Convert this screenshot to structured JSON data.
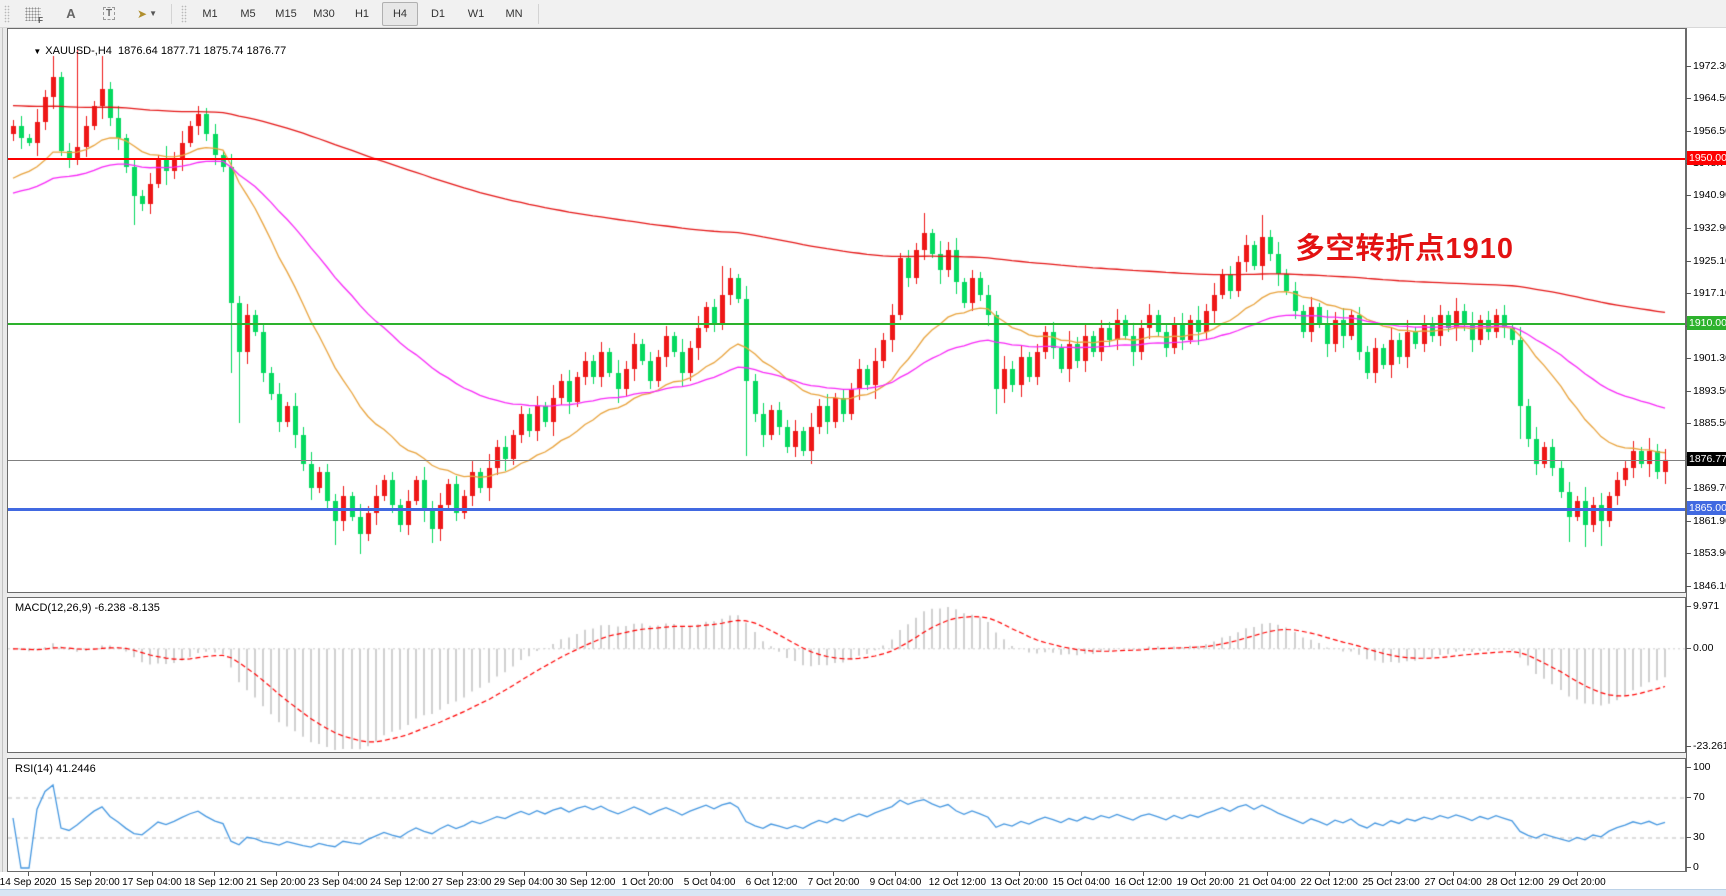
{
  "toolbar": {
    "tools": [
      {
        "name": "fibonacci-tool",
        "glyph": "F"
      },
      {
        "name": "text-label-tool",
        "glyph": "A"
      },
      {
        "name": "text-box-tool",
        "glyph": "T"
      },
      {
        "name": "arrows-tool",
        "glyph": "➤"
      }
    ],
    "timeframes": [
      "M1",
      "M5",
      "M15",
      "M30",
      "H1",
      "H4",
      "D1",
      "W1",
      "MN"
    ],
    "active_timeframe": "H4"
  },
  "title": {
    "dropdown_glyph": "▼",
    "symbol": "XAUUSD-,H4",
    "ohlc_values": "1876.64 1877.71 1875.74 1876.77"
  },
  "chart_data": {
    "type": "candlestick",
    "symbol": "XAUUSD",
    "timeframe": "H4",
    "title": "XAUUSD-,H4  1876.64 1877.71 1875.74 1876.77",
    "annotation": {
      "text": "多空转折点1910",
      "color": "#e31212"
    },
    "colors": {
      "up": "#ee1717",
      "down": "#05d95f",
      "macd_hist": "#c2c2c2",
      "macd_signal": "#ff0000",
      "rsi_line": "#4597e0"
    },
    "price_axis_ticks": [
      "1972.30",
      "1964.50",
      "1956.50",
      "1948.70",
      "1940.90",
      "1932.90",
      "1925.10",
      "1917.10",
      "1909.30",
      "1901.30",
      "1893.50",
      "1885.50",
      "1877.70",
      "1869.70",
      "1861.90",
      "1853.90",
      "1846.10"
    ],
    "horizontal_levels": [
      {
        "name": "resistance-1950",
        "label": "1950.00",
        "value": 1950.0,
        "color": "#fd0000",
        "thickness": 2
      },
      {
        "name": "pivot-1910",
        "label": "1910.00",
        "value": 1910.0,
        "color": "#2db22d",
        "thickness": 2
      },
      {
        "name": "current-price",
        "label": "1876.77",
        "value": 1876.77,
        "color": "#808080",
        "label_bg": "#000000",
        "thickness": 1
      },
      {
        "name": "support-1865",
        "label": "1865.00",
        "value": 1865.0,
        "color": "#4169e1",
        "thickness": 3
      }
    ],
    "time_axis_labels": [
      "14 Sep 2020",
      "15 Sep 20:00",
      "17 Sep 04:00",
      "18 Sep 12:00",
      "21 Sep 20:00",
      "23 Sep 04:00",
      "24 Sep 12:00",
      "27 Sep 23:00",
      "29 Sep 04:00",
      "30 Sep 12:00",
      "1 Oct 20:00",
      "5 Oct 04:00",
      "6 Oct 12:00",
      "7 Oct 20:00",
      "9 Oct 04:00",
      "12 Oct 12:00",
      "13 Oct 20:00",
      "15 Oct 04:00",
      "16 Oct 12:00",
      "19 Oct 20:00",
      "21 Oct 04:00",
      "22 Oct 12:00",
      "25 Oct 23:00",
      "27 Oct 04:00",
      "28 Oct 12:00",
      "29 Oct 20:00"
    ],
    "first_open": 1956,
    "candles_closes": [
      1958,
      1955,
      1954,
      1959,
      1965,
      1970,
      1952,
      1950,
      1953,
      1958,
      1963,
      1967,
      1960,
      1955,
      1948,
      1941,
      1939,
      1944,
      1950,
      1947,
      1950,
      1954,
      1958,
      1961,
      1956,
      1951,
      1948,
      1915,
      1903,
      1912,
      1908,
      1898,
      1893,
      1886,
      1890,
      1883,
      1876,
      1870,
      1874,
      1867,
      1862,
      1868,
      1863,
      1859,
      1864,
      1868,
      1872,
      1866,
      1861,
      1867,
      1872,
      1865,
      1860,
      1866,
      1871,
      1864,
      1868,
      1874,
      1870,
      1875,
      1880,
      1877,
      1883,
      1888,
      1884,
      1890,
      1886,
      1892,
      1896,
      1891,
      1897,
      1901,
      1897,
      1903,
      1898,
      1894,
      1899,
      1905,
      1901,
      1896,
      1902,
      1907,
      1903,
      1898,
      1904,
      1909,
      1914,
      1910,
      1917,
      1921,
      1916,
      1896,
      1888,
      1883,
      1889,
      1885,
      1880,
      1884,
      1879,
      1885,
      1890,
      1886,
      1892,
      1888,
      1894,
      1899,
      1895,
      1901,
      1906,
      1912,
      1926,
      1921,
      1928,
      1932,
      1927,
      1923,
      1928,
      1920,
      1915,
      1921,
      1917,
      1912,
      1894,
      1899,
      1895,
      1902,
      1897,
      1903,
      1908,
      1904,
      1899,
      1905,
      1901,
      1907,
      1903,
      1909,
      1906,
      1911,
      1907,
      1903,
      1909,
      1912,
      1908,
      1904,
      1910,
      1906,
      1911,
      1908,
      1913,
      1917,
      1922,
      1918,
      1925,
      1929,
      1924,
      1931,
      1927,
      1922,
      1918,
      1913,
      1908,
      1914,
      1910,
      1905,
      1911,
      1907,
      1912,
      1903,
      1898,
      1904,
      1900,
      1906,
      1902,
      1908,
      1905,
      1910,
      1907,
      1912,
      1909,
      1913,
      1910,
      1906,
      1911,
      1908,
      1912,
      1909,
      1906,
      1890,
      1882,
      1876,
      1880,
      1875,
      1869,
      1863,
      1867,
      1861,
      1866,
      1862,
      1868,
      1872,
      1875,
      1879,
      1876,
      1879,
      1874,
      1876.8
    ],
    "wick_pattern": [
      1.5,
      2.5,
      1.0,
      3.2,
      1.8,
      2.8,
      1.2,
      2.0
    ],
    "spike_highs": {
      "5": 1975,
      "8": 1976.5,
      "11": 1975,
      "88": 1924,
      "113": 1937,
      "155": 1936.5
    },
    "spike_lows": {
      "15": 1934,
      "27": 1898,
      "28": 1886,
      "40": 1856,
      "43": 1854,
      "52": 1856.5,
      "91": 1878,
      "122": 1888,
      "187": 1882,
      "193": 1857,
      "195": 1855.5,
      "197": 1856
    },
    "moving_averages": [
      {
        "name": "ma-fast-orange",
        "color": "#e8a33d",
        "period": 20,
        "seed": 1944
      },
      {
        "name": "ma-mid-magenta",
        "color": "#f728f7",
        "period": 48,
        "seed": 1941
      },
      {
        "name": "ma-slow-red",
        "color": "#e41515",
        "period": 250,
        "seed": 1963
      }
    ],
    "macd": {
      "label": "MACD(12,26,9) -6.238 -8.135",
      "fast": 12,
      "slow": 26,
      "signal": 9,
      "axis_ticks": [
        "9.971",
        "0.00",
        "-23.261"
      ]
    },
    "rsi": {
      "label": "RSI(14) 41.2446",
      "period": 14,
      "axis_ticks": [
        "100",
        "70",
        "30",
        "0"
      ],
      "level_lines": [
        70,
        30
      ]
    }
  }
}
